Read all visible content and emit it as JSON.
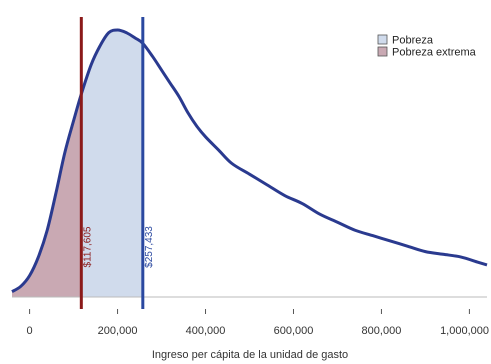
{
  "chart_data": {
    "type": "area",
    "xlabel": "Ingreso per cápita de la unidad de gasto",
    "ylabel": "",
    "xlim": [
      -40000,
      1040000
    ],
    "ylim": [
      0,
      1.0
    ],
    "x_ticks": [
      0,
      200000,
      400000,
      600000,
      800000,
      1000000
    ],
    "x_tick_labels": [
      "0",
      "200,000",
      "400,000",
      "600,000",
      "800,000",
      "1,000,000"
    ],
    "grid": false,
    "legend_position": "top-right",
    "density_curve": {
      "x": [
        -40000,
        -20000,
        0,
        20000,
        40000,
        60000,
        80000,
        100000,
        117605,
        140000,
        160000,
        180000,
        200000,
        220000,
        240000,
        257433,
        280000,
        300000,
        320000,
        340000,
        360000,
        380000,
        400000,
        430000,
        460000,
        500000,
        540000,
        580000,
        620000,
        660000,
        700000,
        740000,
        780000,
        820000,
        860000,
        900000,
        940000,
        980000,
        1020000,
        1040000
      ],
      "y": [
        0.02,
        0.04,
        0.08,
        0.15,
        0.25,
        0.39,
        0.54,
        0.66,
        0.76,
        0.87,
        0.94,
        0.99,
        1.0,
        0.99,
        0.97,
        0.95,
        0.9,
        0.85,
        0.8,
        0.75,
        0.69,
        0.64,
        0.6,
        0.55,
        0.5,
        0.46,
        0.42,
        0.38,
        0.35,
        0.31,
        0.28,
        0.25,
        0.23,
        0.21,
        0.19,
        0.17,
        0.16,
        0.15,
        0.13,
        0.12
      ]
    },
    "thresholds": [
      {
        "name": "Pobreza extrema",
        "value": 117605,
        "label": "$117,605",
        "line_color": "#8b1a1a",
        "fill_color": "#c9a9b3"
      },
      {
        "name": "Pobreza",
        "value": 257433,
        "label": "$257,433",
        "line_color": "#2a48a0",
        "fill_color": "#d0dbec"
      }
    ],
    "curve_color": "#2a3a8f",
    "legend": [
      {
        "label": "Pobreza",
        "color": "#d0dbec"
      },
      {
        "label": "Pobreza extrema",
        "color": "#c9a9b3"
      }
    ]
  }
}
